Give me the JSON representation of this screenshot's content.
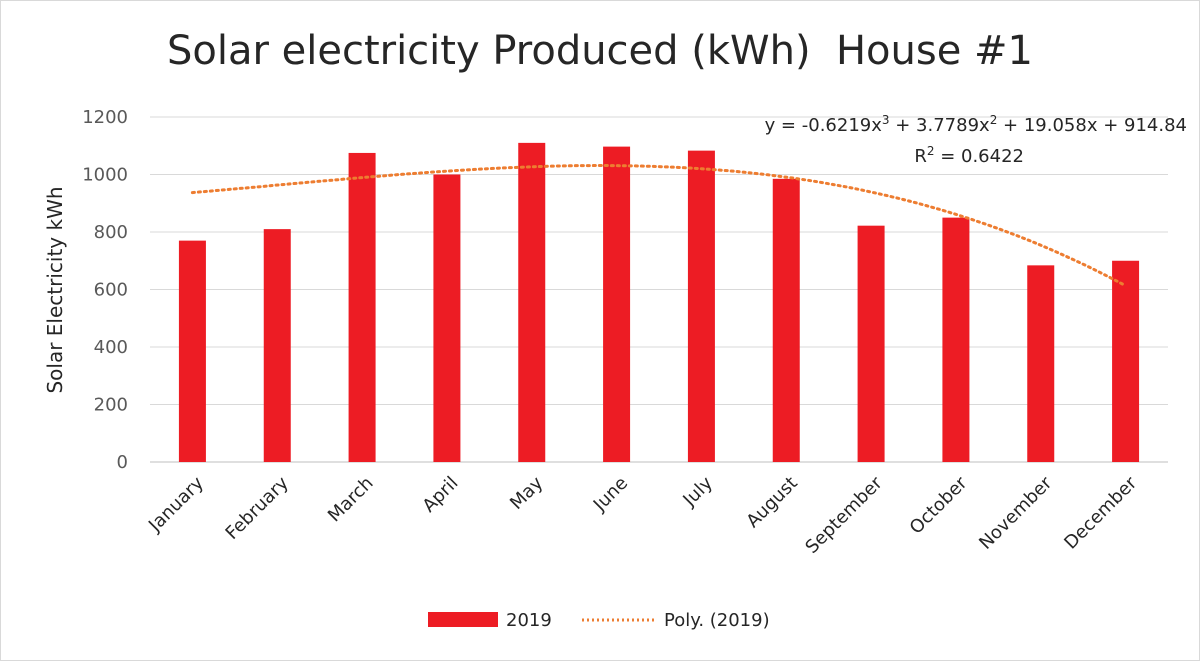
{
  "chart_data": {
    "type": "bar",
    "title": "Solar electricity Produced (kWh)  House #1",
    "xlabel": "",
    "ylabel": "Solar Electricity  kWh",
    "ylim": [
      0,
      1200
    ],
    "yticks": [
      0,
      200,
      400,
      600,
      800,
      1000,
      1200
    ],
    "grid": true,
    "categories": [
      "January",
      "February",
      "March",
      "April",
      "May",
      "June",
      "July",
      "August",
      "September",
      "October",
      "November",
      "December"
    ],
    "series": [
      {
        "name": "2019",
        "type": "bar",
        "color": "#ed1c24",
        "values": [
          770,
          810,
          1075,
          1000,
          1110,
          1097,
          1083,
          985,
          822,
          850,
          684,
          700
        ]
      }
    ],
    "trendline": {
      "name": "Poly. (2019)",
      "type": "polynomial",
      "order": 3,
      "color": "#ed7d31",
      "coefficients": [
        -0.6219,
        3.7789,
        19.058,
        914.84
      ],
      "equation_prefix": "y = -0.6219x",
      "equation_part2": " + 3.7789x",
      "equation_suffix": " + 19.058x + 914.84",
      "exp3": "3",
      "exp2": "2",
      "r2_prefix": "R",
      "r2_exp": "2",
      "r2_suffix": " = 0.6422"
    },
    "legend": {
      "position": "bottom",
      "items": [
        "2019",
        "Poly. (2019)"
      ]
    }
  }
}
